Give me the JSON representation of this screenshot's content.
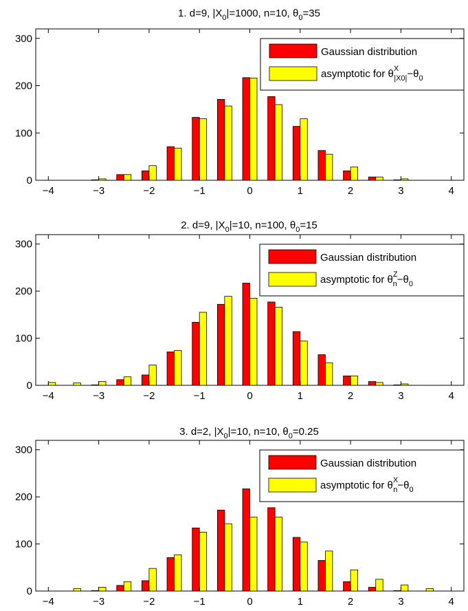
{
  "chart_data": [
    {
      "type": "bar",
      "title": {
        "prefix": "1. d=9, |X",
        "prefix_sub": "0",
        "mid": "|=1000, n=10, θ",
        "mid_sub": "0",
        "suffix": "=35"
      },
      "x": [
        -4,
        -3.5,
        -3,
        -2.5,
        -2,
        -1.5,
        -1,
        -0.5,
        0,
        0.5,
        1,
        1.5,
        2,
        2.5,
        3,
        3.5,
        4
      ],
      "xlim": [
        -4.25,
        4.25
      ],
      "ylim": [
        0,
        320
      ],
      "xticks": [
        "−4",
        "−3",
        "−2",
        "−1",
        "0",
        "1",
        "2",
        "3",
        "4"
      ],
      "yticks": [
        "0",
        "100",
        "200",
        "300"
      ],
      "legend_position": "top-right",
      "series": [
        {
          "name": "Gaussian distribution",
          "color": "#ff0000",
          "values": [
            0,
            0,
            1,
            12,
            20,
            71,
            133,
            171,
            217,
            177,
            114,
            63,
            20,
            7,
            1,
            0,
            0
          ]
        },
        {
          "name": {
            "text": "asymptotic for θ",
            "sup": "X",
            "sub": "|X0|",
            "suffix": "−θ",
            "suffix_sub": "0"
          },
          "color": "#ffff00",
          "values": [
            0,
            0,
            3,
            12,
            31,
            68,
            130,
            157,
            216,
            160,
            130,
            55,
            28,
            7,
            3,
            0,
            0
          ]
        }
      ]
    },
    {
      "type": "bar",
      "title": {
        "prefix": "2. d=9, |X",
        "prefix_sub": "0",
        "mid": "|=10, n=100, θ",
        "mid_sub": "0",
        "suffix": "=15"
      },
      "x": [
        -4,
        -3.5,
        -3,
        -2.5,
        -2,
        -1.5,
        -1,
        -0.5,
        0,
        0.5,
        1,
        1.5,
        2,
        2.5,
        3,
        3.5,
        4
      ],
      "xlim": [
        -4.25,
        4.25
      ],
      "ylim": [
        0,
        320
      ],
      "xticks": [
        "−4",
        "−3",
        "−2",
        "−1",
        "0",
        "1",
        "2",
        "3",
        "4"
      ],
      "yticks": [
        "0",
        "100",
        "200",
        "300"
      ],
      "legend_position": "top-right",
      "series": [
        {
          "name": "Gaussian distribution",
          "color": "#ff0000",
          "values": [
            0,
            0,
            1,
            12,
            22,
            71,
            134,
            172,
            217,
            177,
            114,
            65,
            20,
            8,
            1,
            0,
            0
          ]
        },
        {
          "name": {
            "text": "asymptotic for θ",
            "sup": "Z",
            "sub": "n",
            "suffix": "−θ",
            "suffix_sub": "0"
          },
          "color": "#ffff00",
          "values": [
            6,
            5,
            8,
            18,
            43,
            74,
            155,
            189,
            185,
            166,
            94,
            48,
            20,
            6,
            3,
            0,
            0
          ]
        }
      ]
    },
    {
      "type": "bar",
      "title": {
        "prefix": "3. d=2, |X",
        "prefix_sub": "0",
        "mid": "|=10, n=10, θ",
        "mid_sub": "0",
        "suffix": "=0.25"
      },
      "x": [
        -4,
        -3.5,
        -3,
        -2.5,
        -2,
        -1.5,
        -1,
        -0.5,
        0,
        0.5,
        1,
        1.5,
        2,
        2.5,
        3,
        3.5,
        4
      ],
      "xlim": [
        -4.25,
        4.25
      ],
      "ylim": [
        0,
        320
      ],
      "xticks": [
        "−4",
        "−3",
        "−2",
        "−1",
        "0",
        "1",
        "2",
        "3",
        "4"
      ],
      "yticks": [
        "0",
        "100",
        "200",
        "300"
      ],
      "legend_position": "top-right",
      "series": [
        {
          "name": "Gaussian distribution",
          "color": "#ff0000",
          "values": [
            0,
            0,
            1,
            12,
            22,
            71,
            134,
            172,
            217,
            177,
            114,
            65,
            20,
            8,
            1,
            0,
            0
          ]
        },
        {
          "name": {
            "text": "asymptotic for θ",
            "sup": "X",
            "sub": "n",
            "suffix": "−θ",
            "suffix_sub": "0"
          },
          "color": "#ffff00",
          "values": [
            0,
            5,
            8,
            20,
            48,
            77,
            125,
            143,
            157,
            157,
            104,
            85,
            45,
            25,
            13,
            5,
            0
          ]
        }
      ]
    }
  ]
}
